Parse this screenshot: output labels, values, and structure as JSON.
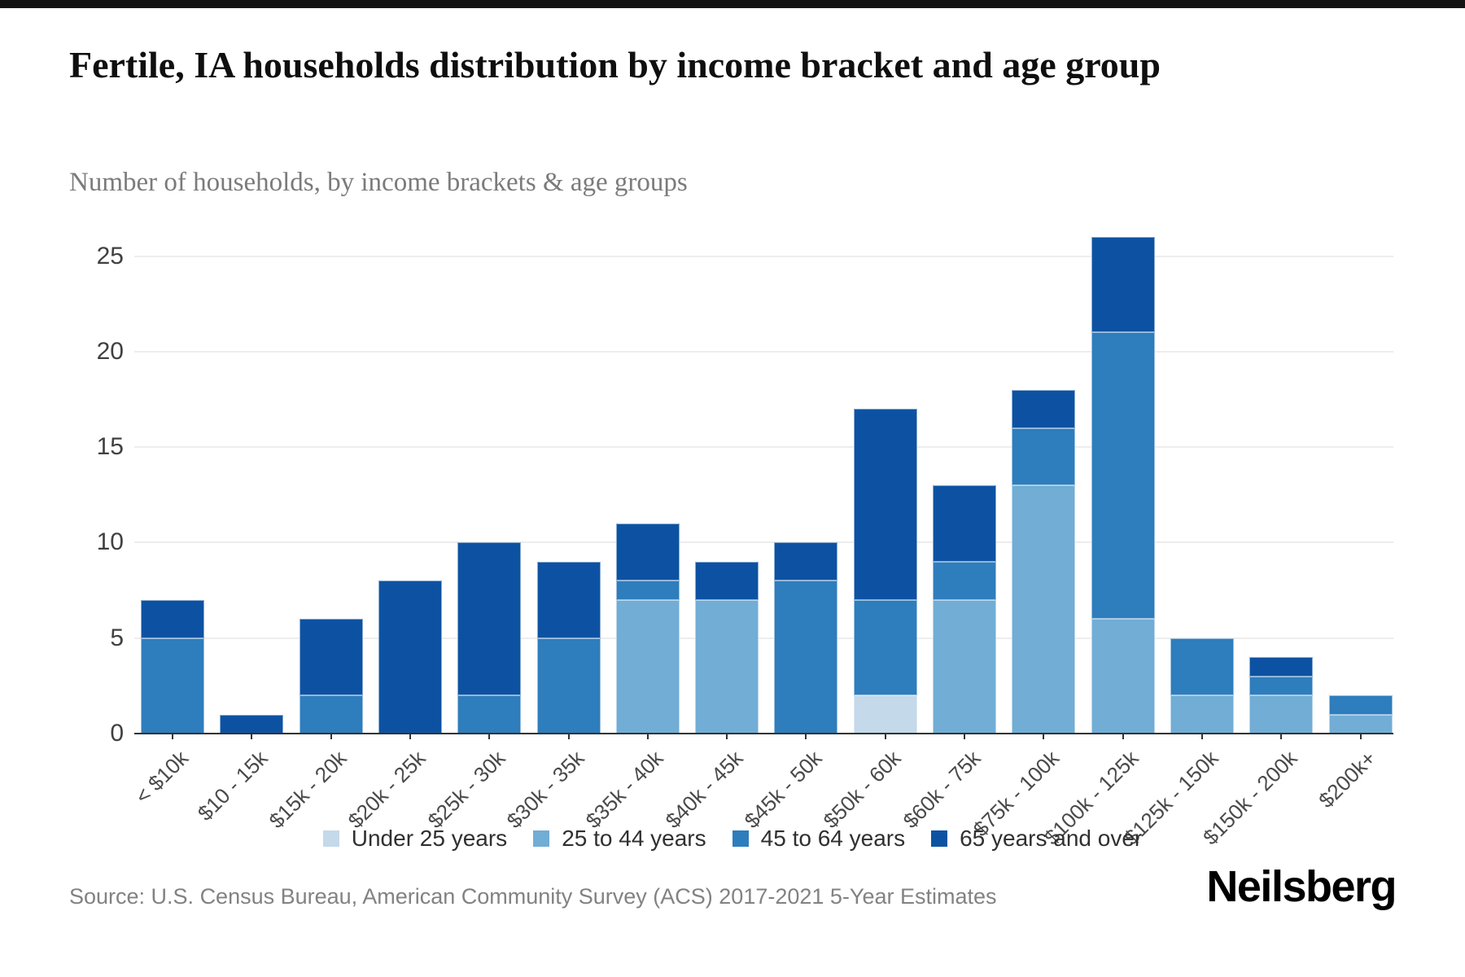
{
  "top_bar": {
    "color": "#141414"
  },
  "header": {
    "title": "Fertile, IA households distribution by income bracket and age group",
    "subtitle": "Number of households, by income brackets & age groups"
  },
  "chart_data": {
    "type": "bar",
    "stacked": true,
    "title": "Fertile, IA households distribution by income bracket and age group",
    "subtitle": "Number of households, by income brackets & age groups",
    "xlabel": "",
    "ylabel": "Number of households",
    "categories": [
      "< $10k",
      "$10 - 15k",
      "$15k - 20k",
      "$20k - 25k",
      "$25k - 30k",
      "$30k - 35k",
      "$35k - 40k",
      "$40k - 45k",
      "$45k - 50k",
      "$50k - 60k",
      "$60k - 75k",
      "$75k - 100k",
      "$100k - 125k",
      "$125k - 150k",
      "$150k - 200k",
      "$200k+"
    ],
    "series": [
      {
        "name": "Under 25 years",
        "color": "#c4d9ea",
        "values": [
          0,
          0,
          0,
          0,
          0,
          0,
          0,
          0,
          0,
          2,
          0,
          0,
          0,
          0,
          0,
          0
        ]
      },
      {
        "name": "25 to 44 years",
        "color": "#71add5",
        "values": [
          0,
          0,
          0,
          0,
          0,
          0,
          7,
          7,
          0,
          0,
          7,
          13,
          6,
          2,
          2,
          1
        ]
      },
      {
        "name": "45 to 64 years",
        "color": "#2e7dbc",
        "values": [
          5,
          0,
          2,
          0,
          2,
          5,
          1,
          0,
          8,
          5,
          2,
          3,
          15,
          3,
          1,
          1
        ]
      },
      {
        "name": "65 years and over",
        "color": "#0d52a2",
        "values": [
          2,
          1,
          4,
          8,
          8,
          4,
          3,
          2,
          2,
          10,
          4,
          2,
          5,
          0,
          1,
          0
        ]
      }
    ],
    "totals": [
      7,
      1,
      6,
      8,
      10,
      9,
      11,
      9,
      10,
      17,
      13,
      18,
      26,
      5,
      4,
      2
    ],
    "y_ticks": [
      0,
      5,
      10,
      15,
      20,
      25
    ],
    "ylim": [
      0,
      26.5
    ],
    "grid": true,
    "legend_position": "bottom"
  },
  "footer": {
    "source_text": "Source: U.S. Census Bureau, American Community Survey (ACS) 2017-2021 5-Year Estimates",
    "brand": "Neilsberg"
  }
}
